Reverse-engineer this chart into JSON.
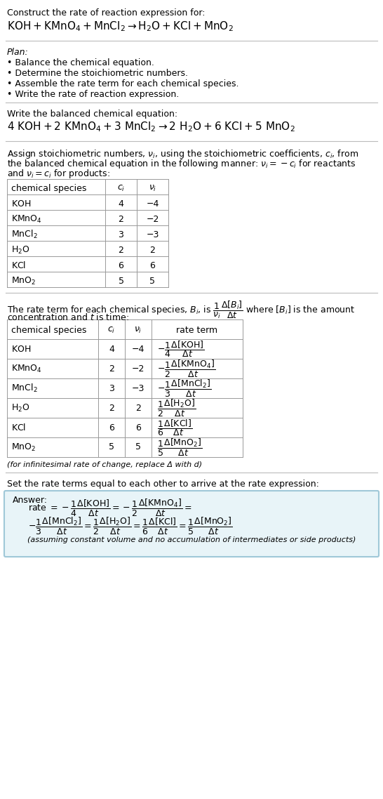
{
  "title_text": "Construct the rate of reaction expression for:",
  "reaction_unbalanced": "KOH + KMnO_4 + MnCl_2 → H_2O + KCl + MnO_2",
  "plan_title": "Plan:",
  "plan_items": [
    "Balance the chemical equation.",
    "Determine the stoichiometric numbers.",
    "Assemble the rate term for each chemical species.",
    "Write the rate of reaction expression."
  ],
  "balanced_label": "Write the balanced chemical equation:",
  "reaction_balanced": "4 KOH + 2 KMnO_4 + 3 MnCl_2 → 2 H_2O + 6 KCl + 5 MnO_2",
  "stoich_label": "Assign stoichiometric numbers, ν_i, using the stoichiometric coefficients, c_i, from\nthe balanced chemical equation in the following manner: ν_i = −c_i for reactants\nand ν_i = c_i for products:",
  "table1_headers": [
    "chemical species",
    "c_i",
    "ν_i"
  ],
  "table1_rows": [
    [
      "KOH",
      "4",
      "−4"
    ],
    [
      "KMnO_4",
      "2",
      "−2"
    ],
    [
      "MnCl_2",
      "3",
      "−3"
    ],
    [
      "H_2O",
      "2",
      "2"
    ],
    [
      "KCl",
      "6",
      "6"
    ],
    [
      "MnO_2",
      "5",
      "5"
    ]
  ],
  "rate_term_label": "The rate term for each chemical species, B_i, is",
  "rate_term_label2": "concentration and t is time:",
  "table2_headers": [
    "chemical species",
    "c_i",
    "ν_i",
    "rate term"
  ],
  "table2_rows": [
    [
      "KOH",
      "4",
      "−4",
      "-\\frac{1}{4}\\frac{\\Delta[KOH]}{\\Delta t}"
    ],
    [
      "KMnO_4",
      "2",
      "−2",
      "-\\frac{1}{2}\\frac{\\Delta[KMnO_4]}{\\Delta t}"
    ],
    [
      "MnCl_2",
      "3",
      "−3",
      "-\\frac{1}{3}\\frac{\\Delta[MnCl_2]}{\\Delta t}"
    ],
    [
      "H_2O",
      "2",
      "2",
      "\\frac{1}{2}\\frac{\\Delta[H_2O]}{\\Delta t}"
    ],
    [
      "KCl",
      "6",
      "6",
      "\\frac{1}{6}\\frac{\\Delta[KCl]}{\\Delta t}"
    ],
    [
      "MnO_2",
      "5",
      "5",
      "\\frac{1}{5}\\frac{\\Delta[MnO_2]}{\\Delta t}"
    ]
  ],
  "infinitesimal_note": "(for infinitesimal rate of change, replace Δ with d)",
  "set_equal_label": "Set the rate terms equal to each other to arrive at the rate expression:",
  "answer_box_color": "#e8f4f8",
  "answer_box_border": "#a0c8d8",
  "answer_label": "Answer:",
  "answer_line1": "rate = -\\frac{1}{4}\\frac{\\Delta[KOH]}{\\Delta t} = -\\frac{1}{2}\\frac{\\Delta[KMnO_4]}{\\Delta t} =",
  "answer_line2": "-\\frac{1}{3}\\frac{\\Delta[MnCl_2]}{\\Delta t} = \\frac{1}{2}\\frac{\\Delta[H_2O]}{\\Delta t} = \\frac{1}{6}\\frac{\\Delta[KCl]}{\\Delta t} = \\frac{1}{5}\\frac{\\Delta[MnO_2]}{\\Delta t}",
  "answer_note": "(assuming constant volume and no accumulation of intermediates or side products)",
  "bg_color": "#ffffff",
  "text_color": "#000000",
  "font_size": 9,
  "table_line_color": "#999999"
}
